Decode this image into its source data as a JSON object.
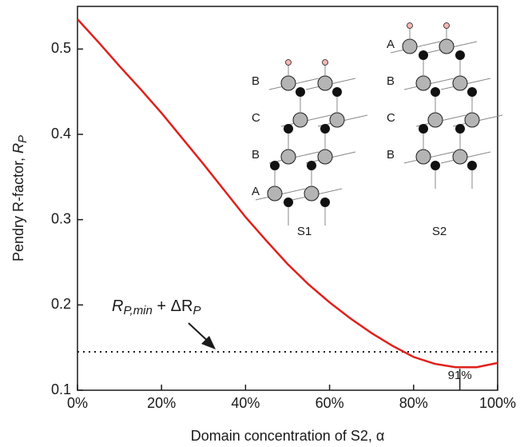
{
  "chart_data": {
    "type": "line",
    "x_label": "Domain concentration of S2, α",
    "y_label_parts": [
      "Pendry R-factor, ",
      "R",
      "P"
    ],
    "x": [
      0,
      5,
      10,
      15,
      20,
      25,
      30,
      35,
      40,
      45,
      50,
      55,
      60,
      65,
      70,
      75,
      80,
      85,
      90,
      95,
      100
    ],
    "series": [
      {
        "color": "#e0201b",
        "values": [
          0.535,
          0.508,
          0.48,
          0.453,
          0.425,
          0.395,
          0.365,
          0.334,
          0.303,
          0.275,
          0.248,
          0.224,
          0.203,
          0.184,
          0.167,
          0.152,
          0.139,
          0.131,
          0.127,
          0.127,
          0.132
        ]
      }
    ],
    "xlim": [
      0,
      100
    ],
    "ylim": [
      0.1,
      0.55
    ],
    "xticks": [
      {
        "value": 0,
        "label": "0%"
      },
      {
        "value": 20,
        "label": "20%"
      },
      {
        "value": 40,
        "label": "40%"
      },
      {
        "value": 60,
        "label": "60%"
      },
      {
        "value": 80,
        "label": "80%"
      },
      {
        "value": 100,
        "label": "100%"
      }
    ],
    "yticks": [
      0.1,
      0.2,
      0.3,
      0.4,
      0.5
    ],
    "threshold": 0.145,
    "threshold_label_parts": [
      "R",
      "P,min",
      " + ΔR",
      "P"
    ],
    "minimum_marker": {
      "value": 91,
      "label": "91%"
    },
    "insets": [
      {
        "name": "S1",
        "layers": [
          "B",
          "C",
          "B",
          "A"
        ]
      },
      {
        "name": "S2",
        "layers": [
          "A",
          "B",
          "C",
          "B"
        ]
      }
    ]
  }
}
